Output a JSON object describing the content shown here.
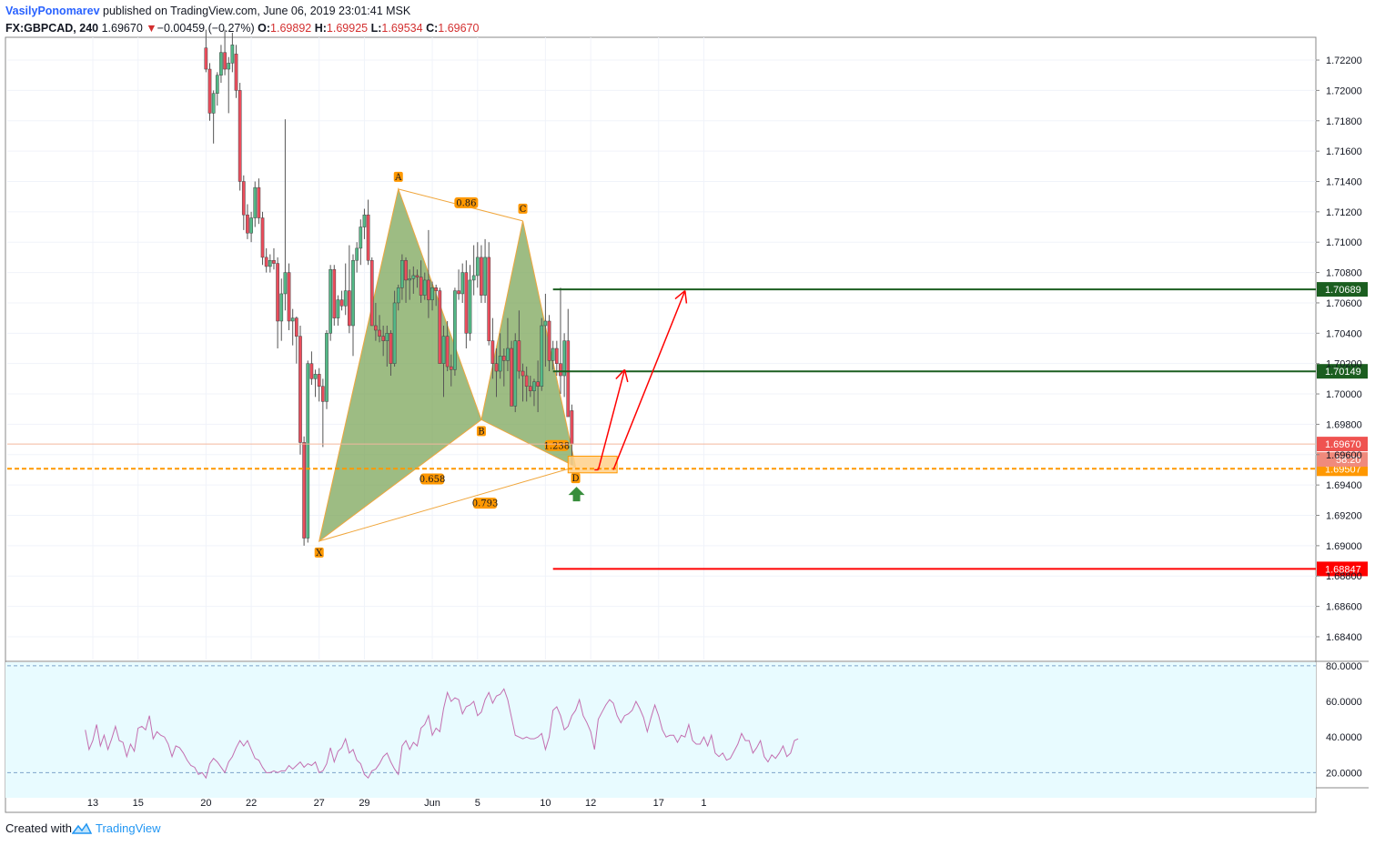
{
  "header": {
    "author": "VasilyPonomarev",
    "published_text": "published on TradingView.com, June 06, 2019 23:01:41 MSK",
    "symbol": "FX:GBPCAD, 240",
    "last": "1.69670",
    "change_arrow": "▼",
    "change": "−0.00459 (−0.27%)",
    "o_label": "O:",
    "o": "1.69892",
    "h_label": "H:",
    "h": "1.69925",
    "l_label": "L:",
    "l": "1.69534",
    "c_label": "C:",
    "c": "1.69670"
  },
  "footer": {
    "created_with": "Created with",
    "brand": "TradingView"
  },
  "colors": {
    "up": "#53b987",
    "down": "#eb4d5c",
    "pattern_fill": "#7ca65a",
    "pattern_line": "#f0a63c",
    "rsi": "#c36fb0",
    "rsi_bg": "#e8fbff",
    "tp_line": "#1b5e20",
    "sl_line": "#ff0000",
    "accent": "#ff9800",
    "price_line": "#ef5350"
  },
  "chart_data": {
    "type": "candlestick",
    "symbol": "GBPCAD",
    "timeframe": "240",
    "ylim": [
      1.6825,
      1.7235
    ],
    "y_ticks": [
      "1.72200",
      "1.72000",
      "1.71800",
      "1.71600",
      "1.71400",
      "1.71200",
      "1.71000",
      "1.70800",
      "1.70600",
      "1.70400",
      "1.70200",
      "1.70000",
      "1.69800",
      "1.69600",
      "1.69400",
      "1.69200",
      "1.69000",
      "1.68800",
      "1.68600",
      "1.68400"
    ],
    "x_ticks": [
      {
        "label": "13",
        "bar": 10
      },
      {
        "label": "15",
        "bar": 22
      },
      {
        "label": "20",
        "bar": 40
      },
      {
        "label": "22",
        "bar": 52
      },
      {
        "label": "27",
        "bar": 70
      },
      {
        "label": "29",
        "bar": 82
      },
      {
        "label": "Jun",
        "bar": 100
      },
      {
        "label": "5",
        "bar": 112
      },
      {
        "label": "10",
        "bar": 130
      },
      {
        "label": "12",
        "bar": 142
      },
      {
        "label": "17",
        "bar": 160
      },
      {
        "label": "1",
        "bar": 172
      }
    ],
    "candles_ohlc": [
      [
        1.7228,
        1.724,
        1.7212,
        1.7214
      ],
      [
        1.7214,
        1.7218,
        1.718,
        1.7185
      ],
      [
        1.7185,
        1.72,
        1.7165,
        1.7198
      ],
      [
        1.7198,
        1.7212,
        1.719,
        1.721
      ],
      [
        1.721,
        1.723,
        1.7205,
        1.7225
      ],
      [
        1.7225,
        1.724,
        1.721,
        1.7214
      ],
      [
        1.7214,
        1.7222,
        1.7185,
        1.7218
      ],
      [
        1.7218,
        1.7238,
        1.7212,
        1.723
      ],
      [
        1.7224,
        1.723,
        1.7195,
        1.72
      ],
      [
        1.72,
        1.7205,
        1.7134,
        1.714
      ],
      [
        1.714,
        1.7144,
        1.7108,
        1.7118
      ],
      [
        1.7118,
        1.7125,
        1.7102,
        1.7106
      ],
      [
        1.7106,
        1.712,
        1.71,
        1.7116
      ],
      [
        1.7116,
        1.714,
        1.711,
        1.7136
      ],
      [
        1.7136,
        1.7142,
        1.7112,
        1.7116
      ],
      [
        1.7116,
        1.712,
        1.7085,
        1.709
      ],
      [
        1.709,
        1.7096,
        1.708,
        1.7084
      ],
      [
        1.7084,
        1.7092,
        1.708,
        1.7088
      ],
      [
        1.7088,
        1.7096,
        1.7082,
        1.7086
      ],
      [
        1.7086,
        1.709,
        1.703,
        1.7048
      ],
      [
        1.7048,
        1.7076,
        1.7035,
        1.7066
      ],
      [
        1.7066,
        1.7181,
        1.7055,
        1.708
      ],
      [
        1.708,
        1.7086,
        1.7042,
        1.7048
      ],
      [
        1.7048,
        1.7056,
        1.7032,
        1.705
      ],
      [
        1.705,
        1.7051,
        1.702,
        1.7038
      ],
      [
        1.7038,
        1.7045,
        1.696,
        1.6968
      ],
      [
        1.6968,
        1.6972,
        1.69,
        1.6905
      ],
      [
        1.6905,
        1.7022,
        1.6902,
        1.702
      ],
      [
        1.702,
        1.7028,
        1.7006,
        1.701
      ],
      [
        1.701,
        1.7016,
        1.6998,
        1.7013
      ],
      [
        1.7013,
        1.7017,
        1.6995,
        1.7005
      ],
      [
        1.7005,
        1.701,
        1.6965,
        1.6995
      ],
      [
        1.6995,
        1.7042,
        1.699,
        1.704
      ],
      [
        1.704,
        1.7085,
        1.7035,
        1.7082
      ],
      [
        1.7082,
        1.7085,
        1.7045,
        1.705
      ],
      [
        1.705,
        1.7065,
        1.7045,
        1.7062
      ],
      [
        1.7062,
        1.7068,
        1.7055,
        1.7058
      ],
      [
        1.7058,
        1.7086,
        1.7052,
        1.7068
      ],
      [
        1.7068,
        1.7098,
        1.704,
        1.7045
      ],
      [
        1.7045,
        1.7092,
        1.7025,
        1.7088
      ],
      [
        1.7088,
        1.71,
        1.708,
        1.7096
      ],
      [
        1.7096,
        1.7115,
        1.7085,
        1.711
      ],
      [
        1.711,
        1.7122,
        1.7102,
        1.7118
      ],
      [
        1.7118,
        1.7128,
        1.7085,
        1.7088
      ],
      [
        1.7088,
        1.709,
        1.705,
        1.7045
      ],
      [
        1.7045,
        1.706,
        1.7035,
        1.7042
      ],
      [
        1.7042,
        1.7052,
        1.7034,
        1.7038
      ],
      [
        1.7038,
        1.7045,
        1.7025,
        1.7035
      ],
      [
        1.7035,
        1.7045,
        1.7018,
        1.704
      ],
      [
        1.704,
        1.7042,
        1.7012,
        1.702
      ],
      [
        1.702,
        1.7068,
        1.7018,
        1.706
      ],
      [
        1.706,
        1.7072,
        1.7055,
        1.707
      ],
      [
        1.707,
        1.7092,
        1.7062,
        1.7088
      ],
      [
        1.7088,
        1.709,
        1.706,
        1.7075
      ],
      [
        1.7075,
        1.7082,
        1.7062,
        1.7076
      ],
      [
        1.7076,
        1.7084,
        1.7066,
        1.7078
      ],
      [
        1.7078,
        1.7082,
        1.707,
        1.7077
      ],
      [
        1.7077,
        1.7088,
        1.706,
        1.7065
      ],
      [
        1.7065,
        1.708,
        1.7062,
        1.7075
      ],
      [
        1.7075,
        1.7108,
        1.705,
        1.7062
      ],
      [
        1.7062,
        1.7074,
        1.7055,
        1.707
      ],
      [
        1.707,
        1.7072,
        1.7058,
        1.7068
      ],
      [
        1.7068,
        1.707,
        1.7042,
        1.702
      ],
      [
        1.702,
        1.7045,
        1.6998,
        1.7038
      ],
      [
        1.7038,
        1.7048,
        1.7015,
        1.7018
      ],
      [
        1.7018,
        1.7026,
        1.7005,
        1.7016
      ],
      [
        1.7016,
        1.707,
        1.7012,
        1.7068
      ],
      [
        1.7068,
        1.7082,
        1.7062,
        1.7066
      ],
      [
        1.7066,
        1.7086,
        1.706,
        1.708
      ],
      [
        1.708,
        1.7088,
        1.703,
        1.704
      ],
      [
        1.704,
        1.7085,
        1.7035,
        1.7075
      ],
      [
        1.7075,
        1.7098,
        1.7065,
        1.7078
      ],
      [
        1.7078,
        1.71,
        1.707,
        1.709
      ],
      [
        1.709,
        1.7098,
        1.706,
        1.7065
      ],
      [
        1.7065,
        1.7102,
        1.706,
        1.709
      ],
      [
        1.709,
        1.71,
        1.7032,
        1.7035
      ],
      [
        1.7035,
        1.705,
        1.701,
        1.702
      ],
      [
        1.702,
        1.703,
        1.6998,
        1.7015
      ],
      [
        1.7015,
        1.704,
        1.701,
        1.7025
      ],
      [
        1.7025,
        1.703,
        1.7005,
        1.7022
      ],
      [
        1.7022,
        1.705,
        1.7015,
        1.703
      ],
      [
        1.703,
        1.7035,
        1.6998,
        1.6992
      ],
      [
        1.6992,
        1.704,
        1.6988,
        1.7035
      ],
      [
        1.7035,
        1.7055,
        1.701,
        1.7015
      ],
      [
        1.7015,
        1.702,
        1.6995,
        1.7012
      ],
      [
        1.7012,
        1.7018,
        1.6995,
        1.7005
      ],
      [
        1.7005,
        1.7012,
        1.6998,
        1.7002
      ],
      [
        1.7002,
        1.701,
        1.6992,
        1.7008
      ],
      [
        1.7008,
        1.7022,
        1.6988,
        1.7005
      ],
      [
        1.7005,
        1.705,
        1.7002,
        1.7045
      ],
      [
        1.7045,
        1.7066,
        1.7018,
        1.7048
      ],
      [
        1.7048,
        1.7052,
        1.7015,
        1.7022
      ],
      [
        1.7022,
        1.7035,
        1.7016,
        1.703
      ],
      [
        1.703,
        1.7035,
        1.7012,
        1.702
      ],
      [
        1.702,
        1.707,
        1.7,
        1.7012
      ],
      [
        1.7012,
        1.704,
        1.6998,
        1.7035
      ],
      [
        1.7035,
        1.7056,
        1.7,
        1.6985
      ],
      [
        1.6989,
        1.6993,
        1.6953,
        1.6967
      ]
    ],
    "candle_start_bar": 40,
    "rsi": {
      "name": "RSI",
      "ylim": [
        12,
        82
      ],
      "levels": [
        80,
        20
      ],
      "ticks": [
        "80.0000",
        "60.0000",
        "40.0000",
        "20.0000"
      ],
      "values": [
        44,
        33,
        38,
        47,
        35,
        41,
        33,
        39,
        46,
        38,
        37,
        29,
        36,
        32,
        45,
        46,
        44,
        52,
        39,
        43,
        41,
        40,
        36,
        29,
        35,
        34,
        31,
        27,
        24,
        23,
        19,
        20,
        17,
        25,
        28,
        26,
        23,
        20,
        26,
        29,
        34,
        38,
        35,
        38,
        33,
        28,
        27,
        23,
        20,
        20,
        21,
        20,
        21,
        21,
        24,
        22,
        24,
        26,
        23,
        25,
        24,
        26,
        20,
        21,
        25,
        34,
        26,
        32,
        34,
        39,
        31,
        33,
        27,
        25,
        19,
        17,
        21,
        22,
        25,
        29,
        31,
        26,
        22,
        19,
        35,
        38,
        33,
        37,
        35,
        45,
        47,
        52,
        41,
        45,
        43,
        56,
        65,
        60,
        62,
        61,
        53,
        57,
        58,
        60,
        52,
        54,
        61,
        65,
        59,
        63,
        64,
        67,
        61,
        51,
        41,
        40,
        39,
        40,
        39,
        39,
        40,
        42,
        33,
        40,
        55,
        57,
        52,
        44,
        46,
        52,
        55,
        61,
        52,
        48,
        43,
        33,
        50,
        54,
        58,
        61,
        59,
        52,
        48,
        52,
        53,
        55,
        60,
        56,
        51,
        43,
        51,
        58,
        52,
        44,
        40,
        41,
        41,
        37,
        41,
        40,
        47,
        38,
        36,
        36,
        40,
        35,
        41,
        31,
        29,
        31,
        27,
        28,
        32,
        36,
        42,
        38,
        38,
        31,
        34,
        38,
        29,
        26,
        30,
        28,
        31,
        35,
        29,
        31,
        38,
        39
      ],
      "start_bar": 8
    },
    "pattern": {
      "name": "Bat harmonic",
      "points": [
        {
          "label": "X",
          "bar": 70,
          "price": 1.6903
        },
        {
          "label": "A",
          "bar": 91,
          "price": 1.7135
        },
        {
          "label": "B",
          "bar": 113,
          "price": 1.6983
        },
        {
          "label": "C",
          "bar": 124,
          "price": 1.7114
        },
        {
          "label": "D",
          "bar": 138,
          "price": 1.6952
        }
      ],
      "ratios": [
        {
          "label": "0.86",
          "bar": 109,
          "price": 1.7126
        },
        {
          "label": "0.658",
          "bar": 100,
          "price": 1.6944
        },
        {
          "label": "1.238",
          "bar": 133,
          "price": 1.6966
        },
        {
          "label": "0.793",
          "bar": 114,
          "price": 1.6928
        }
      ]
    },
    "levels": [
      {
        "name": "tp2",
        "price": 1.70689,
        "label": "1.70689",
        "from_bar": 132
      },
      {
        "name": "tp1",
        "price": 1.70149,
        "label": "1.70149",
        "from_bar": 132
      },
      {
        "name": "sl",
        "price": 1.68847,
        "label": "1.68847",
        "from_bar": 132
      },
      {
        "name": "entry",
        "price": 1.69507,
        "label": "1.69507"
      },
      {
        "name": "last",
        "price": 1.6967,
        "label": "1.69670",
        "countdown": "58:20"
      }
    ],
    "zone": {
      "from_bar": 136,
      "to_bar": 149,
      "top": 1.6959,
      "bottom": 1.6948
    }
  }
}
